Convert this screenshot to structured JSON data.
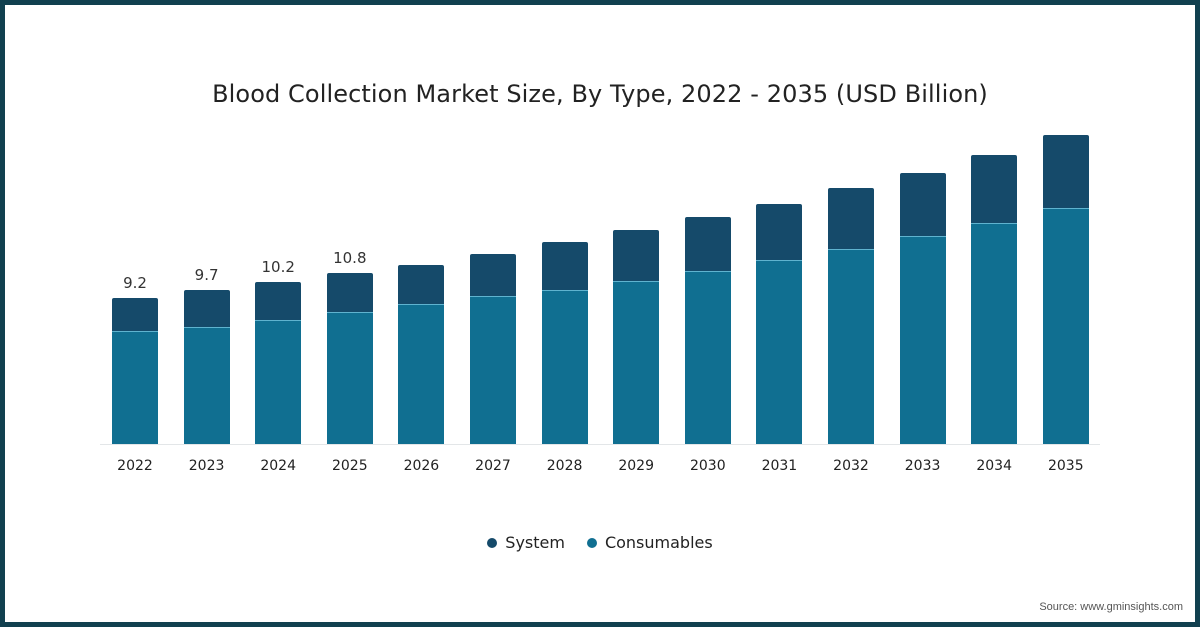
{
  "chart_data": {
    "type": "bar",
    "stacked": true,
    "title": "Blood Collection Market Size, By Type, 2022 - 2035 (USD Billion)",
    "xlabel": "",
    "ylabel": "",
    "categories": [
      "2022",
      "2023",
      "2024",
      "2025",
      "2026",
      "2027",
      "2028",
      "2029",
      "2030",
      "2031",
      "2032",
      "2033",
      "2034",
      "2035"
    ],
    "series": [
      {
        "name": "Consumables",
        "color": "#106f91",
        "values": [
          7.1,
          7.4,
          7.8,
          8.3,
          8.8,
          9.3,
          9.7,
          10.3,
          10.9,
          11.6,
          12.3,
          13.1,
          13.9,
          14.9
        ]
      },
      {
        "name": "System",
        "color": "#154a6a",
        "values": [
          2.1,
          2.3,
          2.4,
          2.5,
          2.5,
          2.7,
          3.0,
          3.2,
          3.4,
          3.5,
          3.8,
          4.0,
          4.3,
          4.6
        ]
      }
    ],
    "totals": [
      9.2,
      9.7,
      10.2,
      10.8,
      11.3,
      12.0,
      12.7,
      13.5,
      14.3,
      15.1,
      16.1,
      17.1,
      18.2,
      19.5
    ],
    "data_labels": {
      "2022": "9.2",
      "2023": "9.7",
      "2024": "10.2",
      "2025": "10.8"
    },
    "ylim": [
      0,
      20
    ],
    "grid": false,
    "legend_position": "bottom",
    "legend": [
      "System",
      "Consumables"
    ]
  },
  "title": "Blood Collection Market Size, By Type, 2022 - 2035 (USD Billion)",
  "legend": {
    "items": [
      {
        "label": "System",
        "color": "#154a6a"
      },
      {
        "label": "Consumables",
        "color": "#106f91"
      }
    ]
  },
  "source": "Source: www.gminsights.com",
  "colors": {
    "frame": "#11404f",
    "system": "#154a6a",
    "consumables": "#106f91"
  }
}
